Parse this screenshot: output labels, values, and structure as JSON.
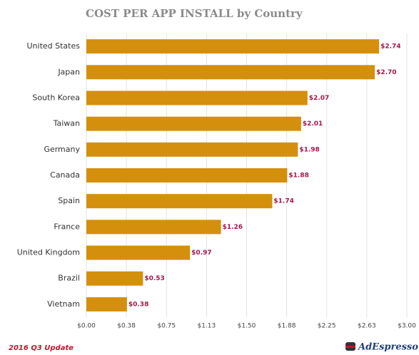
{
  "chart_data": {
    "type": "hbar",
    "title": "COST PER APP INSTALL by Country",
    "categories": [
      "United States",
      "Japan",
      "South Korea",
      "Taiwan",
      "Germany",
      "Canada",
      "Spain",
      "France",
      "United Kingdom",
      "Brazil",
      "Vietnam"
    ],
    "values": [
      2.74,
      2.7,
      2.07,
      2.01,
      1.98,
      1.88,
      1.74,
      1.26,
      0.97,
      0.53,
      0.38
    ],
    "value_labels": [
      "$2.74",
      "$2.70",
      "$2.07",
      "$2.01",
      "$1.98",
      "$1.88",
      "$1.74",
      "$1.26",
      "$0.97",
      "$0.53",
      "$0.38"
    ],
    "color": "#d4900c",
    "label_color": "#a3174b",
    "xlim": [
      0,
      3
    ],
    "xticks": [
      {
        "value": 0,
        "label": "$0.00"
      },
      {
        "value": 0.375,
        "label": "$0.38"
      },
      {
        "value": 0.75,
        "label": "$0.75"
      },
      {
        "value": 1.125,
        "label": "$1.13"
      },
      {
        "value": 1.5,
        "label": "$1.50"
      },
      {
        "value": 1.875,
        "label": "$1.88"
      },
      {
        "value": 2.25,
        "label": "$2.25"
      },
      {
        "value": 2.625,
        "label": "$2.63"
      },
      {
        "value": 3,
        "label": "$3.00"
      }
    ],
    "grid": true
  },
  "footer": {
    "note": "2016 Q3 Update",
    "brand": "AdEspresso"
  }
}
